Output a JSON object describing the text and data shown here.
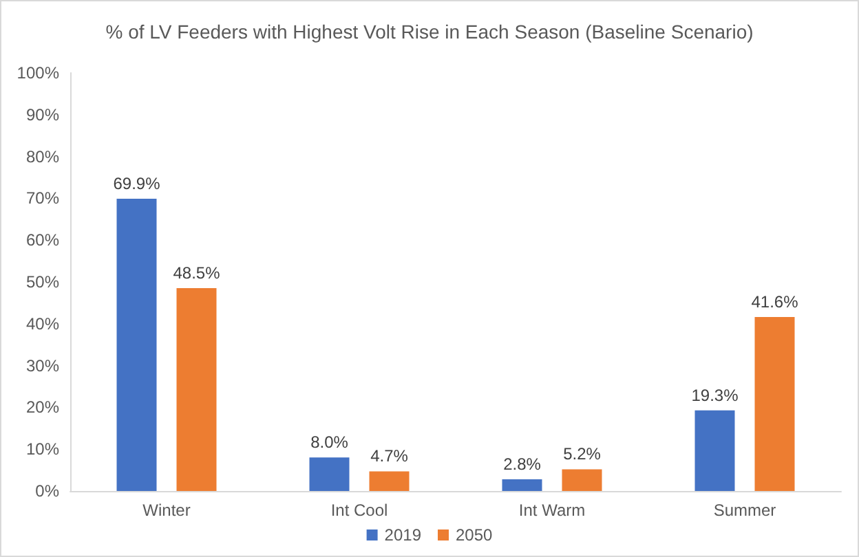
{
  "chart_data": {
    "type": "bar",
    "title": "% of LV Feeders with Highest Volt Rise in Each Season (Baseline Scenario)",
    "categories": [
      "Winter",
      "Int Cool",
      "Int Warm",
      "Summer"
    ],
    "series": [
      {
        "name": "2019",
        "color": "#4472c4",
        "values": [
          69.9,
          8.0,
          2.8,
          19.3
        ],
        "value_labels": [
          "69.9%",
          "8.0%",
          "2.8%",
          "19.3%"
        ]
      },
      {
        "name": "2050",
        "color": "#ed7d31",
        "values": [
          48.5,
          4.7,
          5.2,
          41.6
        ],
        "value_labels": [
          "48.5%",
          "4.7%",
          "5.2%",
          "41.6%"
        ]
      }
    ],
    "ylim": [
      0,
      100
    ],
    "yticks": [
      {
        "value": 0,
        "label": "0%"
      },
      {
        "value": 10,
        "label": "10%"
      },
      {
        "value": 20,
        "label": "20%"
      },
      {
        "value": 30,
        "label": "30%"
      },
      {
        "value": 40,
        "label": "40%"
      },
      {
        "value": 50,
        "label": "50%"
      },
      {
        "value": 60,
        "label": "60%"
      },
      {
        "value": 70,
        "label": "70%"
      },
      {
        "value": 80,
        "label": "80%"
      },
      {
        "value": 90,
        "label": "90%"
      },
      {
        "value": 100,
        "label": "100%"
      }
    ],
    "grid": false,
    "legend": "bottom"
  }
}
